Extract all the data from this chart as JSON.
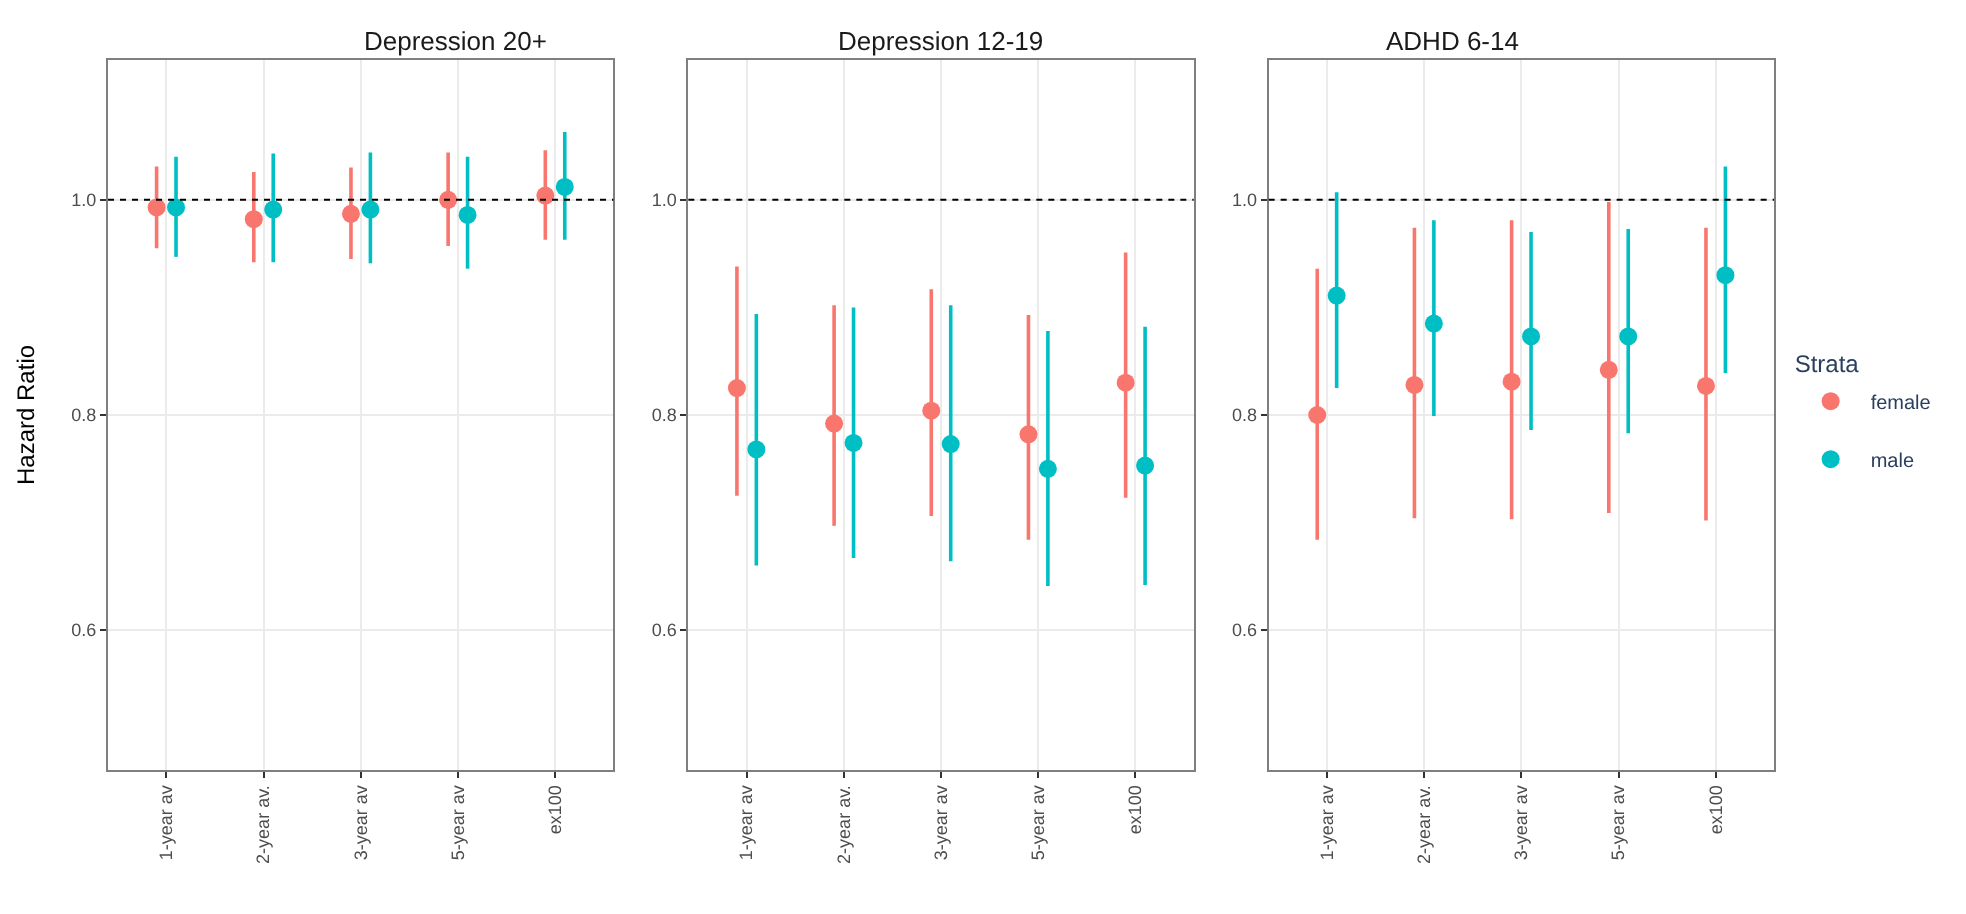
{
  "chart_data": [
    {
      "type": "scatter",
      "title": "Depression 20+",
      "ylabel": "Hazard Ratio",
      "categories": [
        "1-year av",
        "2-year av.",
        "3-year av",
        "5-year av",
        "ex100"
      ],
      "ylim": [
        0.47,
        1.13
      ],
      "yticks": [
        {
          "value": 0.6,
          "label": "0.6"
        },
        {
          "value": 0.8,
          "label": "0.8"
        },
        {
          "value": 1.0,
          "label": "1.0"
        }
      ],
      "grid": true,
      "marker": "circle",
      "ref_lines": [
        {
          "axis": "y",
          "value": 1.0,
          "line_style": "dotted",
          "color": "#000000"
        }
      ],
      "series": [
        {
          "color": "#f8766d",
          "values": [
            0.993,
            0.982,
            0.987,
            1.0,
            1.004
          ],
          "errors": [
            [
              0.955,
              1.031
            ],
            [
              0.942,
              1.026
            ],
            [
              0.945,
              1.03
            ],
            [
              0.957,
              1.044
            ],
            [
              0.963,
              1.046
            ]
          ]
        },
        {
          "color": "#00bfc4",
          "values": [
            0.993,
            0.991,
            0.991,
            0.986,
            1.012
          ],
          "errors": [
            [
              0.947,
              1.04
            ],
            [
              0.942,
              1.043
            ],
            [
              0.941,
              1.044
            ],
            [
              0.936,
              1.04
            ],
            [
              0.963,
              1.063
            ]
          ]
        }
      ]
    },
    {
      "type": "scatter",
      "title": "Depression 12-19",
      "categories": [
        "1-year av",
        "2-year av.",
        "3-year av",
        "5-year av",
        "ex100"
      ],
      "ylim": [
        0.47,
        1.13
      ],
      "yticks": [
        {
          "value": 0.6,
          "label": "0.6"
        },
        {
          "value": 0.8,
          "label": "0.8"
        },
        {
          "value": 1.0,
          "label": "1.0"
        }
      ],
      "grid": true,
      "marker": "circle",
      "ref_lines": [
        {
          "axis": "y",
          "value": 1.0,
          "line_style": "dotted",
          "color": "#000000"
        }
      ],
      "series": [
        {
          "color": "#f8766d",
          "values": [
            0.825,
            0.792,
            0.804,
            0.782,
            0.83
          ],
          "errors": [
            [
              0.725,
              0.938
            ],
            [
              0.697,
              0.902
            ],
            [
              0.706,
              0.917
            ],
            [
              0.684,
              0.893
            ],
            [
              0.723,
              0.951
            ]
          ]
        },
        {
          "color": "#00bfc4",
          "values": [
            0.768,
            0.774,
            0.773,
            0.75,
            0.753
          ],
          "errors": [
            [
              0.66,
              0.894
            ],
            [
              0.667,
              0.9
            ],
            [
              0.664,
              0.902
            ],
            [
              0.641,
              0.878
            ],
            [
              0.642,
              0.882
            ]
          ]
        }
      ]
    },
    {
      "type": "scatter",
      "title": "ADHD 6-14",
      "legend_title": "Strata",
      "legend": "right",
      "categories": [
        "1-year av",
        "2-year av.",
        "3-year av",
        "5-year av",
        "ex100"
      ],
      "ylim": [
        0.47,
        1.13
      ],
      "yticks": [
        {
          "value": 0.6,
          "label": "0.6"
        },
        {
          "value": 0.8,
          "label": "0.8"
        },
        {
          "value": 1.0,
          "label": "1.0"
        }
      ],
      "grid": true,
      "marker": "circle",
      "ref_lines": [
        {
          "axis": "y",
          "value": 1.0,
          "line_style": "dotted",
          "color": "#000000"
        }
      ],
      "series": [
        {
          "name": "female",
          "color": "#f8766d",
          "values": [
            0.8,
            0.828,
            0.831,
            0.842,
            0.827
          ],
          "errors": [
            [
              0.684,
              0.936
            ],
            [
              0.704,
              0.974
            ],
            [
              0.703,
              0.981
            ],
            [
              0.709,
              0.998
            ],
            [
              0.702,
              0.974
            ]
          ]
        },
        {
          "name": "male",
          "color": "#00bfc4",
          "values": [
            0.911,
            0.885,
            0.873,
            0.873,
            0.93
          ],
          "errors": [
            [
              0.825,
              1.007
            ],
            [
              0.799,
              0.981
            ],
            [
              0.786,
              0.97
            ],
            [
              0.783,
              0.973
            ],
            [
              0.839,
              1.031
            ]
          ]
        }
      ]
    }
  ]
}
